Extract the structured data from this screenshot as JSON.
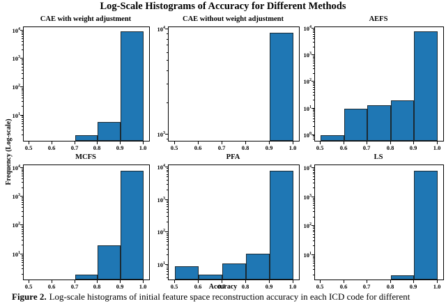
{
  "figure": {
    "title": "Log-Scale Histograms of Accuracy for Different Methods",
    "ylabel": "Frequency (Log-scale)",
    "xlabel": "Accuracy",
    "caption_prefix": "Figure 2.",
    "caption_text": "Log-scale histograms of initial feature space reconstruction accuracy in each ICD code for different"
  },
  "colors": {
    "bar_fill": "#1f77b4",
    "bar_edge": "#1b2a33",
    "axis": "#000000"
  },
  "chart_data": [
    {
      "type": "bar",
      "title": "CAE with weight adjustment",
      "bin_edges": [
        0.5,
        0.6,
        0.7,
        0.8,
        0.9,
        1.0
      ],
      "counts": [
        0,
        0,
        2,
        6,
        9300
      ],
      "yscale": "log",
      "ylim_log10": [
        0.1,
        4.12
      ],
      "ytick_exponents": [
        1,
        2,
        3,
        4
      ],
      "xticks": [
        0.5,
        0.6,
        0.7,
        0.8,
        0.9,
        1.0
      ],
      "xlim": [
        0.475,
        1.025
      ]
    },
    {
      "type": "bar",
      "title": "CAE without weight adjustment",
      "bin_edges": [
        0.5,
        0.6,
        0.7,
        0.8,
        0.9,
        1.0
      ],
      "counts": [
        0,
        0,
        0,
        0,
        9300
      ],
      "yscale": "log",
      "ylim_log10": [
        2.94,
        4.02
      ],
      "ytick_exponents": [
        3,
        4
      ],
      "xticks": [
        0.5,
        0.6,
        0.7,
        0.8,
        0.9,
        1.0
      ],
      "xlim": [
        0.475,
        1.025
      ]
    },
    {
      "type": "bar",
      "title": "AEFS",
      "bin_edges": [
        0.5,
        0.6,
        0.7,
        0.8,
        0.9,
        1.0
      ],
      "counts": [
        1,
        10,
        13,
        20,
        8000
      ],
      "yscale": "log",
      "ylim_log10": [
        -0.22,
        4.06
      ],
      "ytick_exponents": [
        0,
        1,
        2,
        3,
        4
      ],
      "xticks": [
        0.5,
        0.6,
        0.7,
        0.8,
        0.9,
        1.0
      ],
      "xlim": [
        0.475,
        1.025
      ]
    },
    {
      "type": "bar",
      "title": "MCFS",
      "bin_edges": [
        0.5,
        0.6,
        0.7,
        0.8,
        0.9,
        1.0
      ],
      "counts": [
        0,
        0,
        2,
        20,
        8000
      ],
      "yscale": "log",
      "ylim_log10": [
        0.12,
        4.09
      ],
      "ytick_exponents": [
        1,
        2,
        3,
        4
      ],
      "xticks": [
        0.5,
        0.6,
        0.7,
        0.8,
        0.9,
        1.0
      ],
      "xlim": [
        0.475,
        1.025
      ]
    },
    {
      "type": "bar",
      "title": "PFA",
      "bin_edges": [
        0.5,
        0.6,
        0.7,
        0.8,
        0.9,
        1.0
      ],
      "counts": [
        9,
        5,
        11,
        22,
        8000
      ],
      "yscale": "log",
      "ylim_log10": [
        0.55,
        4.07
      ],
      "ytick_exponents": [
        1,
        2,
        3,
        4
      ],
      "xticks": [
        0.5,
        0.6,
        0.7,
        0.8,
        0.9,
        1.0
      ],
      "xlim": [
        0.475,
        1.025
      ]
    },
    {
      "type": "bar",
      "title": "LS",
      "bin_edges": [
        0.5,
        0.6,
        0.7,
        0.8,
        0.9,
        1.0
      ],
      "counts": [
        0,
        0,
        0,
        2,
        8000
      ],
      "yscale": "log",
      "ylim_log10": [
        0.15,
        4.1
      ],
      "ytick_exponents": [
        1,
        2,
        3,
        4
      ],
      "xticks": [
        0.5,
        0.6,
        0.7,
        0.8,
        0.9,
        1.0
      ],
      "xlim": [
        0.475,
        1.025
      ]
    }
  ]
}
